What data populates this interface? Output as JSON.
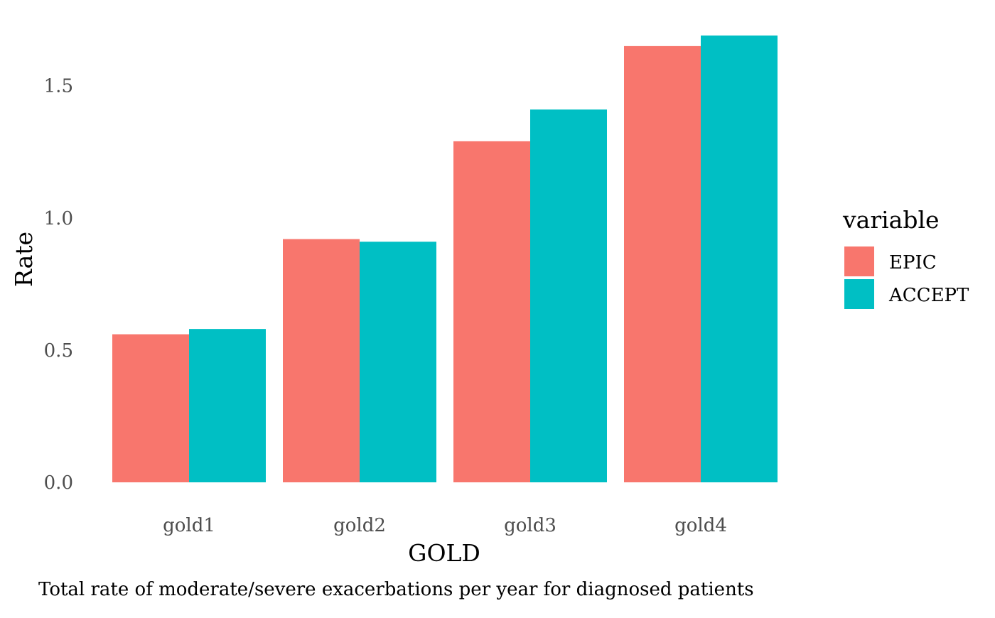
{
  "chart_data": {
    "type": "bar",
    "title": "",
    "xlabel": "GOLD",
    "ylabel": "Rate",
    "caption": "Total rate of moderate/severe exacerbations per year for diagnosed patients",
    "categories": [
      "gold1",
      "gold2",
      "gold3",
      "gold4"
    ],
    "series": [
      {
        "name": "EPIC",
        "color": "#F8766D",
        "values": [
          0.56,
          0.92,
          1.29,
          1.65
        ]
      },
      {
        "name": "ACCEPT",
        "color": "#00BFC4",
        "values": [
          0.58,
          0.91,
          1.41,
          1.69
        ]
      }
    ],
    "ylim": [
      0,
      1.69
    ],
    "yticks": [
      {
        "value": 0.0,
        "label": "0.0"
      },
      {
        "value": 0.5,
        "label": "0.5"
      },
      {
        "value": 1.0,
        "label": "1.0"
      },
      {
        "value": 1.5,
        "label": "1.5"
      }
    ],
    "grid": false,
    "legend": {
      "title": "variable",
      "position": "right"
    }
  }
}
